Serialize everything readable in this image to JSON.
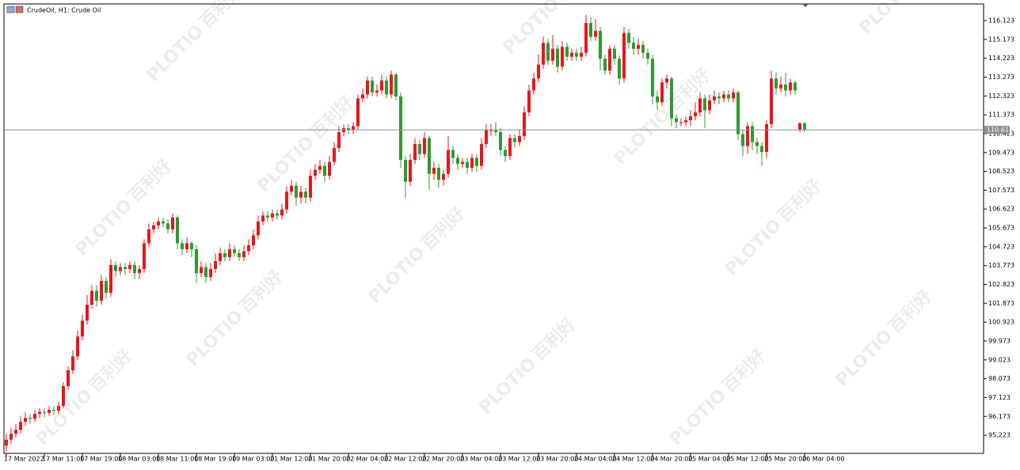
{
  "chart_data": {
    "type": "candlestick",
    "title": "CrudeOil, H1:  Crude Oil",
    "watermark": {
      "brand": "PLOTIO",
      "cn": "百利好"
    },
    "up_color": "#e8161b",
    "down_color": "#2e9a2e",
    "grid": false,
    "current_price": 110.617,
    "ylim": [
      94.31,
      116.96
    ],
    "yticks": [
      95.223,
      96.173,
      97.123,
      98.073,
      99.023,
      99.973,
      100.923,
      101.873,
      102.823,
      103.773,
      104.723,
      105.673,
      106.623,
      107.573,
      108.523,
      109.473,
      110.423,
      111.373,
      112.323,
      113.273,
      114.223,
      115.173,
      116.123
    ],
    "categories": [
      "17 Mar 2022",
      null,
      null,
      null,
      null,
      null,
      null,
      null,
      "17 Mar 11:00",
      null,
      null,
      null,
      null,
      null,
      null,
      null,
      "17 Mar 19:00",
      null,
      null,
      null,
      null,
      null,
      null,
      null,
      "18 Mar 03:00",
      null,
      null,
      null,
      null,
      null,
      null,
      null,
      "18 Mar 11:00",
      null,
      null,
      null,
      null,
      null,
      null,
      null,
      "18 Mar 19:00",
      null,
      null,
      null,
      null,
      null,
      null,
      null,
      "19 Mar 03:00",
      null,
      null,
      null,
      null,
      null,
      null,
      null,
      "21 Mar 12:00",
      null,
      null,
      null,
      null,
      null,
      null,
      null,
      "21 Mar 20:00",
      null,
      null,
      null,
      null,
      null,
      null,
      null,
      "22 Mar 04:00",
      null,
      null,
      null,
      null,
      null,
      null,
      null,
      "22 Mar 12:00",
      null,
      null,
      null,
      null,
      null,
      null,
      null,
      "22 Mar 20:00",
      null,
      null,
      null,
      null,
      null,
      null,
      null,
      "23 Mar 04:00",
      null,
      null,
      null,
      null,
      null,
      null,
      null,
      "23 Mar 12:00",
      null,
      null,
      null,
      null,
      null,
      null,
      null,
      "23 Mar 20:00",
      null,
      null,
      null,
      null,
      null,
      null,
      null,
      "24 Mar 04:00",
      null,
      null,
      null,
      null,
      null,
      null,
      null,
      "24 Mar 12:00",
      null,
      null,
      null,
      null,
      null,
      null,
      null,
      "24 Mar 20:00",
      null,
      null,
      null,
      null,
      null,
      null,
      null,
      "25 Mar 04:00",
      null,
      null,
      null,
      null,
      null,
      null,
      null,
      "25 Mar 12:00",
      null,
      null,
      null,
      null,
      null,
      null,
      null,
      "25 Mar 20:00",
      null,
      null,
      null,
      null,
      null,
      null,
      null,
      "26 Mar 04:00"
    ],
    "open": [
      94.7,
      95.0,
      95.3,
      95.5,
      95.9,
      96.1,
      96.05,
      96.3,
      96.4,
      96.35,
      96.5,
      96.45,
      96.7,
      97.7,
      98.5,
      99.2,
      100.2,
      101.0,
      101.8,
      102.5,
      102.0,
      103.0,
      102.4,
      103.8,
      103.5,
      103.7,
      103.6,
      103.8,
      103.4,
      103.6,
      104.9,
      105.6,
      105.8,
      106.0,
      105.9,
      105.6,
      106.2,
      104.9,
      104.6,
      104.9,
      104.6,
      103.4,
      103.7,
      103.2,
      103.6,
      104.0,
      104.4,
      104.2,
      104.6,
      104.4,
      104.2,
      104.5,
      104.8,
      105.3,
      106.0,
      106.3,
      106.2,
      106.4,
      106.3,
      106.6,
      107.5,
      107.8,
      107.2,
      107.5,
      107.2,
      108.3,
      108.6,
      108.8,
      108.3,
      109.0,
      109.7,
      110.5,
      110.7,
      110.6,
      110.8,
      112.2,
      112.4,
      113.1,
      112.5,
      112.6,
      113.1,
      112.4,
      113.4,
      112.3,
      109.1,
      108.0,
      109.1,
      109.9,
      109.4,
      110.2,
      108.4,
      108.7,
      108.1,
      108.4,
      109.6,
      109.2,
      108.9,
      109.0,
      108.7,
      109.2,
      108.8,
      109.9,
      110.6,
      110.6,
      110.5,
      109.6,
      109.3,
      110.2,
      110.0,
      110.3,
      111.5,
      112.6,
      113.2,
      113.9,
      115.0,
      114.1,
      114.7,
      113.8,
      114.8,
      114.3,
      114.5,
      114.3,
      114.5,
      116.0,
      115.3,
      115.6,
      114.2,
      113.6,
      114.7,
      114.2,
      113.2,
      115.5,
      115.0,
      114.7,
      114.9,
      114.5,
      114.2,
      112.3,
      112.0,
      113.0,
      113.2,
      111.2,
      111.0,
      111.0,
      111.1,
      111.3,
      111.5,
      112.2,
      111.6,
      112.1,
      112.3,
      112.2,
      112.4,
      112.2,
      112.5,
      110.4,
      109.8,
      110.8,
      110.0,
      109.8,
      109.5,
      110.9,
      113.2,
      112.7,
      112.9,
      112.6,
      113.0,
      110.6,
      110.95
    ],
    "high": [
      95.3,
      95.6,
      95.8,
      96.2,
      96.4,
      96.3,
      96.5,
      96.6,
      96.6,
      96.7,
      96.7,
      96.9,
      97.9,
      98.7,
      99.5,
      100.5,
      101.3,
      102.3,
      102.8,
      102.8,
      103.3,
      103.2,
      104.1,
      104.0,
      103.9,
      103.9,
      104.0,
      104.0,
      103.8,
      105.1,
      105.9,
      106.0,
      106.2,
      106.2,
      106.1,
      106.4,
      106.3,
      105.1,
      105.2,
      105.0,
      104.8,
      104.0,
      103.9,
      103.9,
      104.4,
      104.7,
      104.6,
      104.9,
      104.8,
      104.6,
      104.8,
      105.1,
      105.6,
      106.3,
      106.5,
      106.5,
      106.6,
      106.6,
      106.9,
      107.8,
      108.1,
      108.0,
      107.8,
      107.7,
      108.6,
      108.9,
      109.1,
      109.0,
      109.3,
      110.0,
      110.8,
      110.9,
      110.9,
      111.0,
      112.4,
      112.7,
      113.3,
      113.3,
      112.9,
      113.4,
      113.3,
      113.6,
      113.5,
      112.5,
      109.3,
      109.4,
      110.2,
      110.1,
      110.5,
      110.3,
      109.0,
      108.9,
      108.6,
      110.3,
      109.8,
      109.4,
      109.2,
      109.2,
      109.4,
      109.4,
      110.2,
      110.9,
      110.9,
      111.0,
      110.7,
      109.8,
      110.4,
      110.4,
      110.6,
      111.8,
      112.9,
      113.5,
      114.4,
      115.3,
      115.2,
      115.4,
      114.9,
      115.1,
      115.0,
      114.7,
      114.7,
      114.8,
      116.4,
      116.3,
      116.2,
      115.8,
      114.4,
      114.9,
      114.9,
      114.4,
      115.8,
      115.7,
      115.3,
      115.2,
      115.1,
      114.7,
      114.4,
      112.6,
      113.2,
      113.4,
      113.3,
      111.4,
      111.2,
      111.3,
      111.6,
      112.0,
      112.5,
      112.4,
      112.4,
      112.6,
      112.5,
      112.6,
      112.6,
      112.7,
      112.6,
      110.6,
      111.0,
      111.0,
      110.2,
      110.0,
      111.1,
      113.6,
      113.5,
      113.3,
      113.5,
      113.2,
      113.1,
      111.0,
      111.0
    ],
    "low": [
      94.4,
      94.8,
      95.1,
      95.3,
      95.7,
      95.8,
      95.9,
      96.1,
      96.15,
      96.2,
      96.25,
      96.3,
      96.6,
      97.5,
      98.3,
      99.0,
      100.0,
      100.8,
      101.6,
      101.7,
      101.8,
      102.1,
      102.2,
      103.2,
      103.3,
      103.3,
      103.4,
      103.1,
      103.1,
      103.4,
      104.7,
      105.4,
      105.6,
      105.7,
      105.4,
      105.4,
      104.6,
      104.3,
      104.4,
      104.2,
      102.9,
      103.2,
      102.9,
      103.0,
      103.4,
      103.8,
      104.0,
      104.0,
      104.2,
      104.0,
      104.0,
      104.3,
      104.6,
      105.1,
      105.8,
      106.0,
      106.0,
      106.1,
      106.1,
      106.4,
      107.3,
      106.8,
      106.9,
      106.9,
      107.0,
      108.1,
      108.4,
      108.0,
      108.1,
      108.8,
      109.5,
      110.3,
      110.4,
      110.4,
      110.6,
      112.0,
      112.2,
      112.3,
      112.3,
      112.4,
      112.2,
      112.2,
      112.1,
      108.7,
      107.2,
      107.8,
      108.9,
      109.1,
      109.2,
      107.6,
      108.1,
      107.7,
      107.8,
      108.2,
      108.9,
      108.6,
      108.7,
      108.4,
      108.5,
      108.5,
      108.6,
      109.7,
      110.3,
      110.3,
      109.3,
      109.0,
      109.1,
      109.7,
      109.8,
      110.1,
      111.3,
      112.4,
      113.0,
      113.7,
      113.9,
      113.9,
      113.5,
      113.6,
      114.1,
      114.1,
      114.1,
      114.1,
      114.3,
      115.1,
      115.1,
      113.6,
      113.4,
      113.4,
      113.9,
      112.9,
      113.0,
      114.7,
      114.4,
      114.4,
      114.2,
      113.9,
      111.9,
      111.6,
      111.8,
      112.7,
      110.8,
      110.7,
      110.8,
      110.8,
      110.8,
      111.1,
      111.3,
      110.7,
      111.4,
      111.9,
      111.9,
      112.0,
      112.0,
      112.0,
      110.1,
      109.3,
      109.4,
      109.6,
      109.4,
      108.8,
      109.2,
      110.7,
      112.4,
      112.5,
      112.3,
      112.4,
      112.4,
      110.5,
      110.5
    ],
    "close": [
      95.0,
      95.3,
      95.5,
      95.9,
      96.1,
      96.05,
      96.3,
      96.4,
      96.35,
      96.5,
      96.45,
      96.7,
      97.7,
      98.5,
      99.2,
      100.2,
      101.0,
      101.8,
      102.5,
      102.0,
      103.0,
      102.4,
      103.8,
      103.5,
      103.7,
      103.6,
      103.8,
      103.4,
      103.6,
      104.9,
      105.6,
      105.8,
      106.0,
      105.9,
      105.6,
      106.2,
      104.9,
      104.6,
      104.9,
      104.6,
      103.4,
      103.7,
      103.2,
      103.6,
      104.0,
      104.4,
      104.2,
      104.6,
      104.4,
      104.2,
      104.5,
      104.8,
      105.3,
      106.0,
      106.3,
      106.2,
      106.4,
      106.3,
      106.6,
      107.5,
      107.8,
      107.2,
      107.5,
      107.2,
      108.3,
      108.6,
      108.8,
      108.3,
      109.0,
      109.7,
      110.5,
      110.7,
      110.6,
      110.8,
      112.2,
      112.4,
      113.1,
      112.5,
      112.6,
      113.1,
      112.4,
      113.4,
      112.3,
      109.1,
      108.0,
      109.1,
      109.9,
      109.4,
      110.2,
      108.4,
      108.7,
      108.1,
      108.4,
      109.6,
      109.2,
      108.9,
      109.0,
      108.7,
      109.2,
      108.8,
      109.9,
      110.6,
      110.6,
      110.5,
      109.6,
      109.3,
      110.2,
      110.0,
      110.3,
      111.5,
      112.6,
      113.2,
      113.9,
      115.0,
      114.1,
      114.7,
      113.8,
      114.8,
      114.3,
      114.5,
      114.3,
      114.5,
      116.0,
      115.3,
      115.6,
      114.2,
      113.6,
      114.7,
      114.2,
      113.2,
      115.5,
      115.0,
      114.7,
      114.9,
      114.5,
      114.2,
      112.3,
      112.0,
      113.0,
      113.2,
      111.2,
      111.0,
      111.0,
      111.1,
      111.3,
      111.5,
      112.2,
      111.6,
      112.1,
      112.3,
      112.2,
      112.4,
      112.2,
      112.5,
      110.4,
      109.8,
      110.8,
      110.0,
      109.8,
      109.5,
      110.9,
      113.2,
      112.7,
      112.9,
      112.6,
      113.0,
      112.6,
      110.95,
      110.617
    ]
  }
}
